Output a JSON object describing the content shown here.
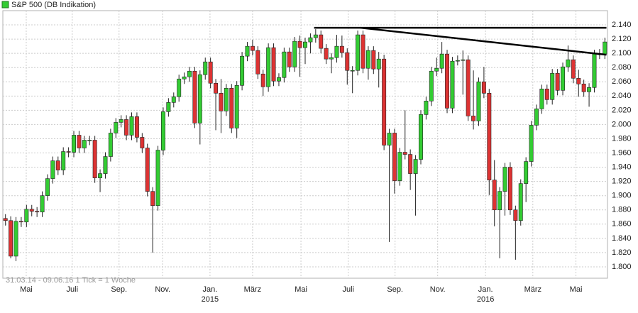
{
  "chart_data": {
    "type": "candlestick",
    "title": "S&P 500 (DB Indikation)",
    "info": "31.03.14 - 09.06.16   1 Tick = 1 Woche",
    "up_color": "#33cc33",
    "down_color": "#dd3333",
    "open": [
      1868,
      1865,
      1815,
      1864,
      1863,
      1881,
      1878,
      1877,
      1900,
      1924,
      1949,
      1936,
      1962,
      1961,
      1985,
      1967,
      1978,
      1978,
      1925,
      1931,
      1955,
      1988,
      2003,
      2007,
      1985,
      2011,
      1982,
      1967,
      1906,
      1886,
      1964,
      2018,
      2031,
      2039,
      2064,
      2067,
      2075,
      2002,
      2070,
      2088,
      2058,
      2044,
      2019,
      2051,
      1995,
      2055,
      2096,
      2110,
      2104,
      2071,
      2053,
      2108,
      2061,
      2066,
      2102,
      2081,
      2117,
      2108,
      2116,
      2122,
      2126,
      2107,
      2092,
      2094,
      2110,
      2101,
      2076,
      2076,
      2126,
      2079,
      2104,
      2078,
      2092,
      1971,
      1988,
      1921,
      1961,
      1958,
      1931,
      1951,
      2014,
      2033,
      2075,
      2079,
      2099,
      2023,
      2089,
      2090,
      2091,
      2012,
      2005,
      2060,
      2044,
      1922,
      1880,
      1906,
      1940,
      1880,
      1865,
      1917,
      1948,
      1999,
      2022,
      2050,
      2035,
      2072,
      2048,
      2081,
      2091,
      2065,
      2057,
      2046,
      2052,
      2099,
      2099
    ],
    "high": [
      1874,
      1871,
      1870,
      1870,
      1887,
      1887,
      1884,
      1906,
      1930,
      1955,
      1955,
      1968,
      1968,
      1991,
      1991,
      1984,
      1984,
      1984,
      1937,
      1961,
      1994,
      2009,
      2013,
      2013,
      2017,
      2017,
      1988,
      1973,
      1912,
      1970,
      2024,
      2037,
      2045,
      2070,
      2073,
      2081,
      2081,
      2076,
      2094,
      2094,
      2064,
      2064,
      2057,
      2057,
      2061,
      2102,
      2116,
      2119,
      2110,
      2077,
      2114,
      2114,
      2072,
      2108,
      2108,
      2123,
      2125,
      2122,
      2128,
      2134,
      2132,
      2113,
      2100,
      2126,
      2125,
      2107,
      2082,
      2132,
      2132,
      2110,
      2110,
      2102,
      2098,
      1994,
      1994,
      1967,
      2020,
      1965,
      1957,
      2020,
      2039,
      2081,
      2094,
      2116,
      2105,
      2095,
      2097,
      2104,
      2097,
      2076,
      2066,
      2081,
      2050,
      1950,
      1912,
      1946,
      1947,
      1886,
      1923,
      1954,
      2005,
      2028,
      2056,
      2056,
      2078,
      2078,
      2087,
      2111,
      2097,
      2077,
      2063,
      2058,
      2105,
      2106,
      2122
    ],
    "low": [
      1858,
      1812,
      1808,
      1856,
      1856,
      1871,
      1870,
      1870,
      1893,
      1917,
      1929,
      1929,
      1954,
      1954,
      1960,
      1960,
      1971,
      1918,
      1905,
      1924,
      1948,
      1981,
      1996,
      1978,
      1978,
      1975,
      1960,
      1899,
      1820,
      1879,
      1957,
      2011,
      2024,
      2032,
      2057,
      2060,
      1995,
      1972,
      2063,
      2051,
      1992,
      1988,
      2012,
      1988,
      1981,
      2048,
      2089,
      2097,
      2064,
      2040,
      2046,
      2054,
      2054,
      2059,
      2074,
      2074,
      2067,
      2085,
      2100,
      2115,
      2100,
      2085,
      2072,
      2087,
      2094,
      2056,
      2044,
      2069,
      2072,
      2063,
      2071,
      2052,
      1964,
      1835,
      1903,
      1914,
      1951,
      1908,
      1872,
      1944,
      2007,
      2026,
      2068,
      2072,
      2016,
      2016,
      2083,
      2042,
      2005,
      1993,
      1998,
      2037,
      1901,
      1857,
      1812,
      1872,
      1873,
      1810,
      1858,
      1891,
      1941,
      1992,
      2015,
      2028,
      2028,
      2041,
      2041,
      2074,
      2058,
      2039,
      2039,
      2025,
      2045,
      2092,
      2092
    ],
    "close": [
      1865,
      1815,
      1864,
      1863,
      1881,
      1878,
      1877,
      1900,
      1924,
      1949,
      1936,
      1962,
      1961,
      1985,
      1967,
      1978,
      1978,
      1925,
      1931,
      1955,
      1988,
      2003,
      2007,
      1985,
      2011,
      1982,
      1967,
      1906,
      1886,
      1964,
      2018,
      2031,
      2039,
      2064,
      2067,
      2075,
      2002,
      2070,
      2088,
      2058,
      2044,
      2019,
      2051,
      1995,
      2055,
      2096,
      2110,
      2104,
      2071,
      2053,
      2108,
      2061,
      2066,
      2102,
      2081,
      2117,
      2108,
      2116,
      2122,
      2126,
      2107,
      2092,
      2094,
      2110,
      2101,
      2076,
      2076,
      2126,
      2079,
      2104,
      2078,
      2092,
      1971,
      1988,
      1921,
      1961,
      1958,
      1931,
      1951,
      2014,
      2033,
      2075,
      2079,
      2099,
      2023,
      2089,
      2090,
      2091,
      2012,
      2005,
      2060,
      2044,
      1922,
      1880,
      1906,
      1940,
      1880,
      1865,
      1917,
      1948,
      1999,
      2022,
      2050,
      2035,
      2072,
      2048,
      2081,
      2091,
      2065,
      2057,
      2046,
      2052,
      2099,
      2099,
      2116
    ],
    "xlim": [
      -0.5,
      114.5
    ],
    "xticks": [
      {
        "value": 3.95,
        "label": "Mai"
      },
      {
        "value": 12.7,
        "label": "Juli"
      },
      {
        "value": 21.6,
        "label": "Sep."
      },
      {
        "value": 29.9,
        "label": "Nov."
      },
      {
        "value": 38.9,
        "label": "Jan."
      },
      {
        "value": 47.0,
        "label": "März"
      },
      {
        "value": 56.2,
        "label": "Mai"
      },
      {
        "value": 65.2,
        "label": "Juli"
      },
      {
        "value": 74.1,
        "label": "Sep."
      },
      {
        "value": 82.2,
        "label": "Nov."
      },
      {
        "value": 91.3,
        "label": "Jan."
      },
      {
        "value": 100.3,
        "label": "März"
      },
      {
        "value": 108.5,
        "label": "Mai"
      }
    ],
    "year_labels": [
      {
        "value": 38.9,
        "label": "2015"
      },
      {
        "value": 91.3,
        "label": "2016"
      }
    ],
    "ylim": [
      1784,
      2160
    ],
    "yticks": [
      {
        "value": 1800,
        "label": "1.800"
      },
      {
        "value": 1820,
        "label": "1.820"
      },
      {
        "value": 1840,
        "label": "1.840"
      },
      {
        "value": 1860,
        "label": "1.860"
      },
      {
        "value": 1880,
        "label": "1.880"
      },
      {
        "value": 1900,
        "label": "1.900"
      },
      {
        "value": 1920,
        "label": "1.920"
      },
      {
        "value": 1940,
        "label": "1.940"
      },
      {
        "value": 1960,
        "label": "1.960"
      },
      {
        "value": 1980,
        "label": "1.980"
      },
      {
        "value": 2000,
        "label": "2.000"
      },
      {
        "value": 2020,
        "label": "2.020"
      },
      {
        "value": 2040,
        "label": "2.040"
      },
      {
        "value": 2060,
        "label": "2.060"
      },
      {
        "value": 2080,
        "label": "2.080"
      },
      {
        "value": 2100,
        "label": "2.100"
      },
      {
        "value": 2120,
        "label": "2.120"
      },
      {
        "value": 2140,
        "label": "2.140"
      }
    ],
    "grid": true,
    "trend_lines": [
      {
        "x": [
          58.7,
          114.3
        ],
        "y": [
          2136,
          2136
        ]
      },
      {
        "x": [
          67.5,
          114.3
        ],
        "y": [
          2136,
          2098
        ]
      }
    ]
  }
}
